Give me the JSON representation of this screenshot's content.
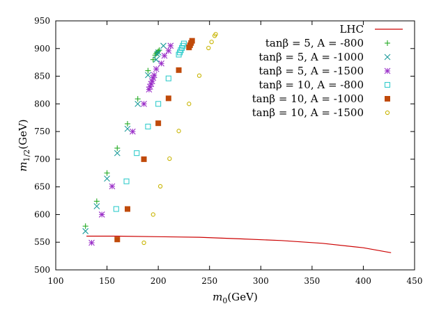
{
  "chart_data": {
    "type": "scatter",
    "title": "",
    "xlabel": {
      "base": "m",
      "sub": "0",
      "unit": "(GeV)"
    },
    "ylabel": {
      "base": "m",
      "sub": "1/2",
      "unit": "(GeV)"
    },
    "xlim": [
      100,
      450
    ],
    "ylim": [
      500,
      950
    ],
    "x_ticks": [
      100,
      150,
      200,
      250,
      300,
      350,
      400,
      450
    ],
    "y_ticks": [
      500,
      550,
      600,
      650,
      700,
      750,
      800,
      850,
      900,
      950
    ],
    "legend_position": "top-right",
    "series": [
      {
        "name": "LHC",
        "style": "line",
        "color": "#cc0000",
        "points": [
          [
            130,
            561
          ],
          [
            160,
            561
          ],
          [
            200,
            560
          ],
          [
            240,
            559
          ],
          [
            280,
            556
          ],
          [
            320,
            553
          ],
          [
            360,
            548
          ],
          [
            400,
            540
          ],
          [
            427,
            531
          ]
        ]
      },
      {
        "name": "tanβ = 5, A = -800",
        "style": "plus",
        "color": "#22aa22",
        "points": [
          [
            129,
            579
          ],
          [
            140,
            624
          ],
          [
            150,
            675
          ],
          [
            160,
            720
          ],
          [
            170,
            764
          ],
          [
            180,
            809
          ],
          [
            190,
            860
          ],
          [
            195,
            880
          ],
          [
            197,
            888
          ],
          [
            198,
            891
          ],
          [
            199,
            893
          ],
          [
            200,
            895
          ],
          [
            201,
            897
          ]
        ]
      },
      {
        "name": "tanβ = 5, A = -1000",
        "style": "cross",
        "color": "#1a9a9a",
        "points": [
          [
            129,
            570
          ],
          [
            140,
            615
          ],
          [
            150,
            665
          ],
          [
            160,
            711
          ],
          [
            170,
            755
          ],
          [
            180,
            800
          ],
          [
            190,
            852
          ],
          [
            198,
            880
          ],
          [
            199,
            890
          ],
          [
            200,
            893
          ],
          [
            205,
            905
          ]
        ]
      },
      {
        "name": "tanβ = 5, A = -1500",
        "style": "star",
        "color": "#9b30c8",
        "points": [
          [
            135,
            549
          ],
          [
            145,
            600
          ],
          [
            155,
            651
          ],
          [
            175,
            750
          ],
          [
            186,
            800
          ],
          [
            191,
            826
          ],
          [
            192,
            831
          ],
          [
            193,
            836
          ],
          [
            194,
            841
          ],
          [
            195,
            847
          ],
          [
            196,
            852
          ],
          [
            198,
            863
          ],
          [
            203,
            873
          ],
          [
            206,
            887
          ],
          [
            210,
            896
          ],
          [
            212,
            905
          ]
        ]
      },
      {
        "name": "tanβ = 10, A = -800",
        "style": "square",
        "color": "#33cccc",
        "points": [
          [
            159,
            610
          ],
          [
            169,
            660
          ],
          [
            179,
            711
          ],
          [
            190,
            759
          ],
          [
            200,
            800
          ],
          [
            210,
            846
          ],
          [
            220,
            889
          ],
          [
            221,
            893
          ],
          [
            222,
            897
          ],
          [
            223,
            901
          ],
          [
            224,
            905
          ],
          [
            225,
            909
          ]
        ]
      },
      {
        "name": "tanβ = 10, A = -1000",
        "style": "filled-square",
        "color": "#c04a0a",
        "points": [
          [
            160,
            555
          ],
          [
            170,
            610
          ],
          [
            186,
            700
          ],
          [
            200,
            765
          ],
          [
            210,
            810
          ],
          [
            220,
            861
          ],
          [
            230,
            902
          ],
          [
            231,
            906
          ],
          [
            232,
            910
          ],
          [
            233,
            914
          ]
        ]
      },
      {
        "name": "tanβ = 10, A = -1500",
        "style": "circle",
        "color": "#c8b400",
        "points": [
          [
            186,
            549
          ],
          [
            195,
            600
          ],
          [
            202,
            651
          ],
          [
            211,
            701
          ],
          [
            220,
            751
          ],
          [
            230,
            800
          ],
          [
            240,
            851
          ],
          [
            249,
            901
          ],
          [
            252,
            912
          ],
          [
            255,
            923
          ],
          [
            256,
            926
          ]
        ]
      }
    ]
  }
}
